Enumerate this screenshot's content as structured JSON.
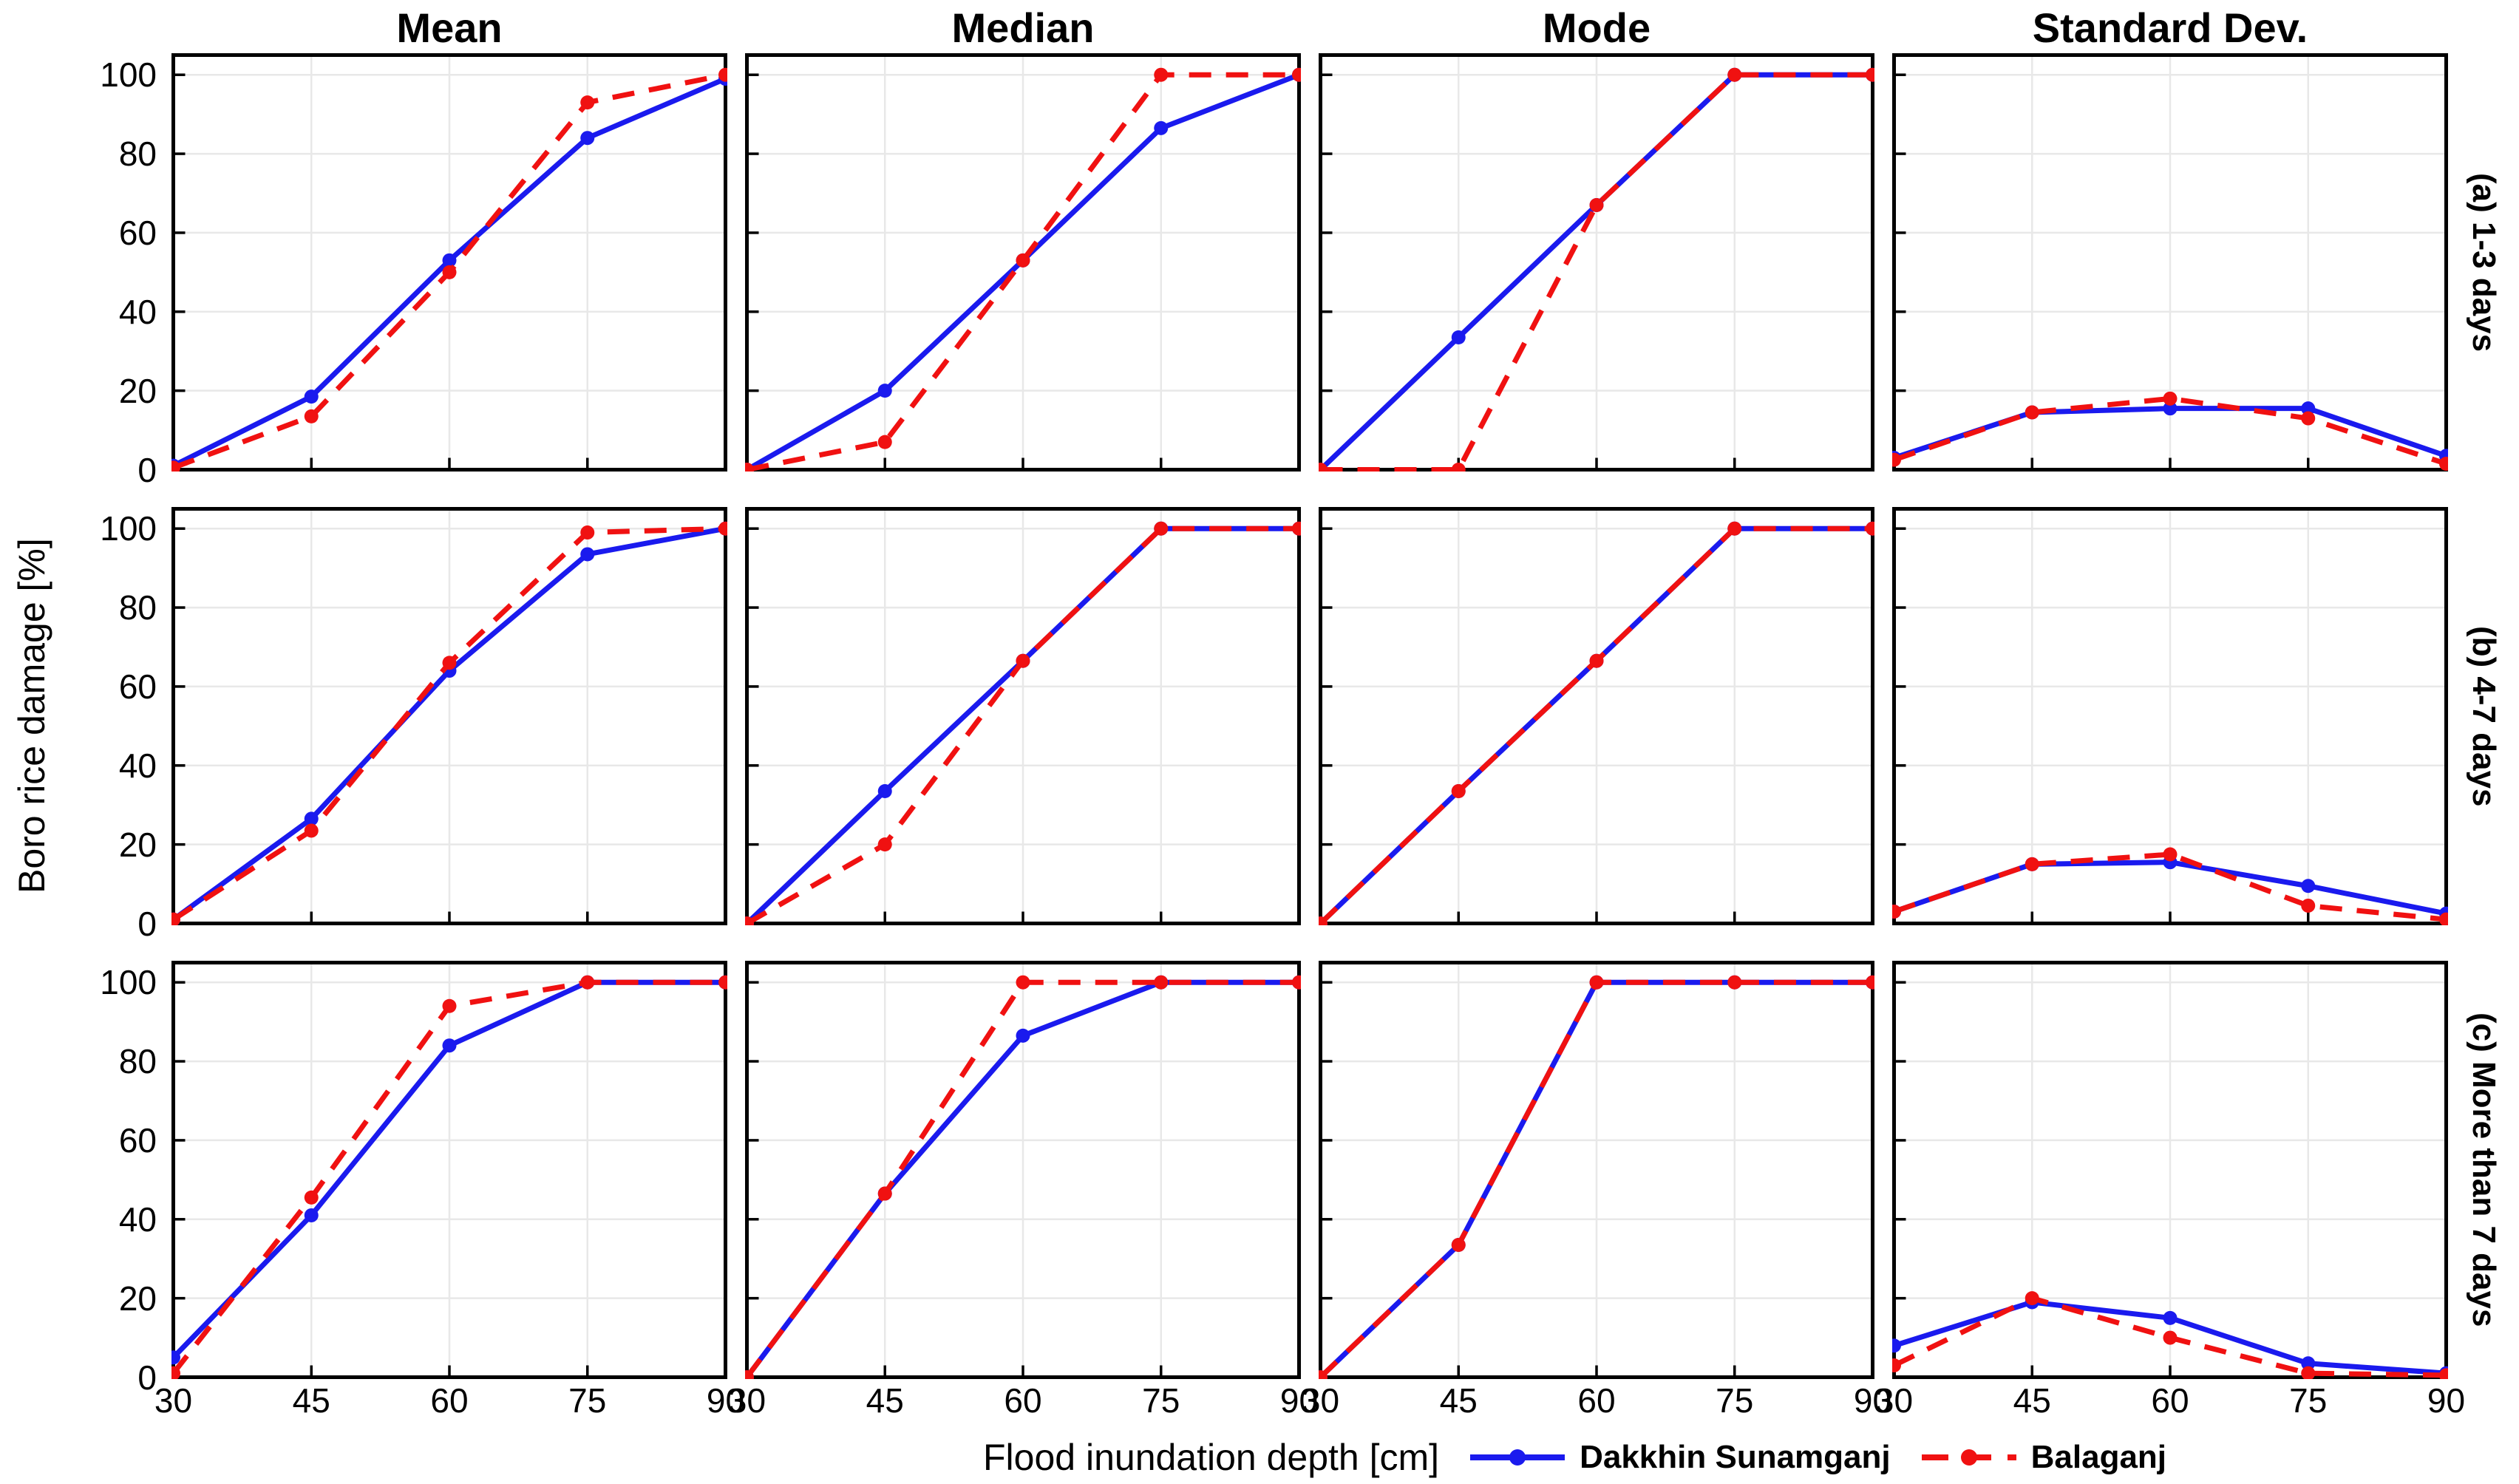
{
  "chart_data": {
    "type": "line",
    "x": [
      30,
      45,
      60,
      75,
      90
    ],
    "xlabel": "Flood inundation depth [cm]",
    "ylabel": "Boro rice damage [%]",
    "ylim": [
      0,
      105
    ],
    "yticks": [
      0,
      20,
      40,
      60,
      80,
      100
    ],
    "grid": true,
    "grid_color": "#e8e8e8",
    "legend_position": "bottom-right",
    "col_titles": [
      "Mean",
      "Median",
      "Mode",
      "Standard Dev."
    ],
    "row_labels": [
      "(a) 1-3 days",
      "(b) 4-7 days",
      "(c) More than 7 days"
    ],
    "series": [
      {
        "name": "Dakkhin Sunamganj",
        "color": "#1a1aee",
        "line": "solid",
        "marker": "circle"
      },
      {
        "name": "Balaganj",
        "color": "#f01111",
        "line": "dashed",
        "marker": "circle"
      }
    ],
    "panels": [
      {
        "row_label": "(a) 1-3 days",
        "col_title": "Mean",
        "values": [
          [
            1,
            18.5,
            53,
            84,
            99
          ],
          [
            0.5,
            13.5,
            50,
            93,
            100
          ]
        ]
      },
      {
        "row_label": "(a) 1-3 days",
        "col_title": "Median",
        "values": [
          [
            0,
            20,
            53,
            86.5,
            100
          ],
          [
            0,
            7,
            53,
            100,
            100
          ]
        ]
      },
      {
        "row_label": "(a) 1-3 days",
        "col_title": "Mode",
        "values": [
          [
            0,
            33.5,
            67,
            100,
            100
          ],
          [
            0,
            0,
            67,
            100,
            100
          ]
        ]
      },
      {
        "row_label": "(a) 1-3 days",
        "col_title": "Standard Dev.",
        "values": [
          [
            3,
            14.5,
            15.5,
            15.5,
            3.5
          ],
          [
            2.5,
            14.5,
            18,
            13,
            1.5
          ]
        ]
      },
      {
        "row_label": "(b) 4-7 days",
        "col_title": "Mean",
        "values": [
          [
            1,
            26.5,
            64,
            93.5,
            100
          ],
          [
            1,
            23.5,
            66,
            99,
            100
          ]
        ]
      },
      {
        "row_label": "(b) 4-7 days",
        "col_title": "Median",
        "values": [
          [
            0,
            33.5,
            66.5,
            100,
            100
          ],
          [
            0,
            20,
            66.5,
            100,
            100
          ]
        ]
      },
      {
        "row_label": "(b) 4-7 days",
        "col_title": "Mode",
        "values": [
          [
            0,
            33.5,
            66.5,
            100,
            100
          ],
          [
            0,
            33.5,
            66.5,
            100,
            100
          ]
        ]
      },
      {
        "row_label": "(b) 4-7 days",
        "col_title": "Standard Dev.",
        "values": [
          [
            3,
            15,
            15.5,
            9.5,
            2.5
          ],
          [
            3,
            15,
            17.5,
            4.5,
            1
          ]
        ]
      },
      {
        "row_label": "(c) More than 7 days",
        "col_title": "Mean",
        "values": [
          [
            5,
            41,
            84,
            100,
            100
          ],
          [
            1,
            45.5,
            94,
            100,
            100
          ]
        ]
      },
      {
        "row_label": "(c) More than 7 days",
        "col_title": "Median",
        "values": [
          [
            0,
            46.5,
            86.5,
            100,
            100
          ],
          [
            0,
            46.5,
            100,
            100,
            100
          ]
        ]
      },
      {
        "row_label": "(c) More than 7 days",
        "col_title": "Mode",
        "values": [
          [
            0,
            33.5,
            100,
            100,
            100
          ],
          [
            0,
            33.5,
            100,
            100,
            100
          ]
        ]
      },
      {
        "row_label": "(c) More than 7 days",
        "col_title": "Standard Dev.",
        "values": [
          [
            8,
            19,
            15,
            3.5,
            1
          ],
          [
            3,
            20,
            10,
            1,
            0.5
          ]
        ]
      }
    ]
  }
}
